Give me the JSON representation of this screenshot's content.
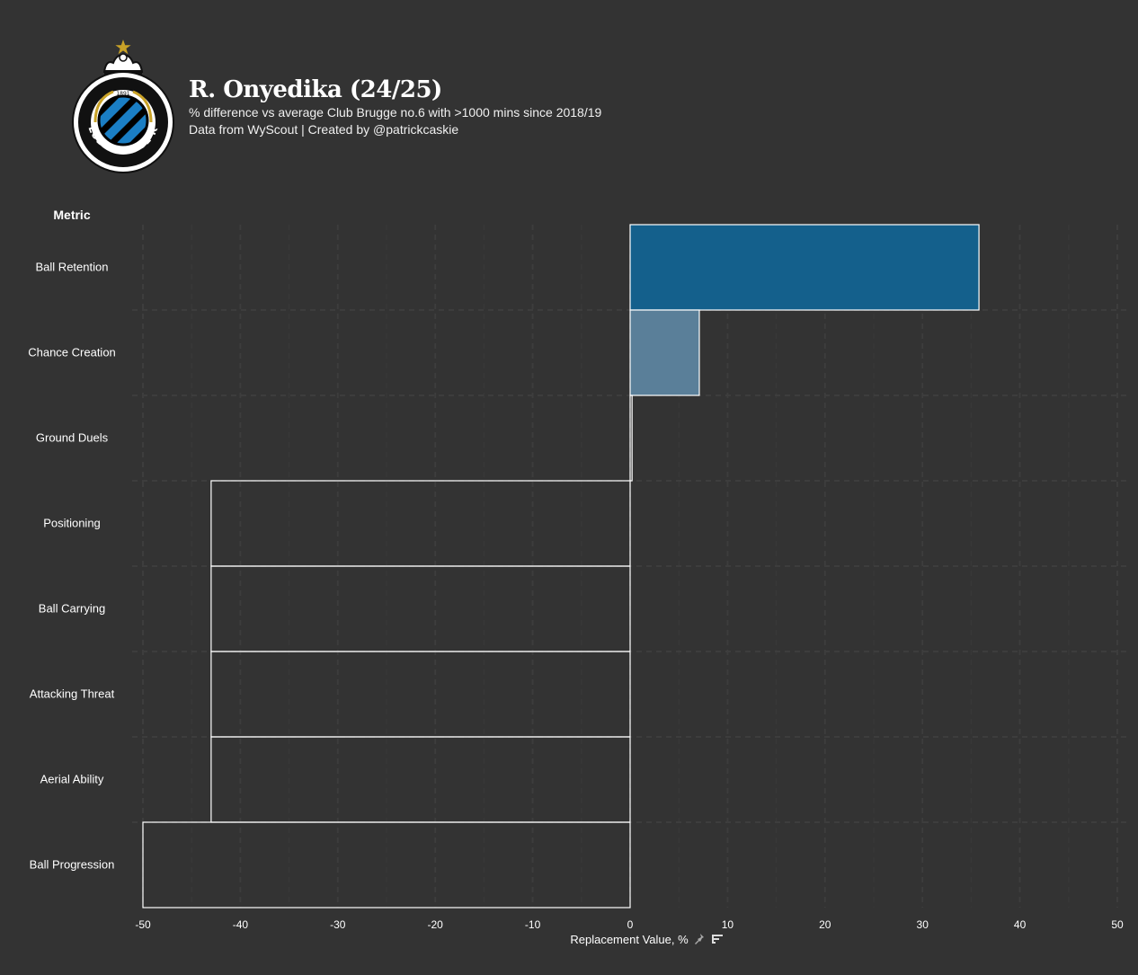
{
  "header": {
    "title": "R. Onyedika (24/25)",
    "subtitle_line1": "% difference vs average Club Brugge no.6 with >1000 mins since 2018/19",
    "subtitle_line2": "Data from WyScout | Created by @patrickcaskie"
  },
  "logo": {
    "year": "1891",
    "text": "CLUB BRUGGE KV"
  },
  "colors": {
    "background": "#333333",
    "bar_strong": "#14608c",
    "bar_light": "#5a7f99",
    "bar_outline": "#ffffff",
    "gold": "#c9a227"
  },
  "chart_data": {
    "type": "bar",
    "orientation": "horizontal",
    "title": "R. Onyedika (24/25)",
    "ylabel": "Metric",
    "xlabel": "Replacement Value, %",
    "xlim": [
      -50,
      50
    ],
    "xticks": [
      -50,
      -40,
      -30,
      -20,
      -10,
      0,
      10,
      20,
      30,
      40,
      50
    ],
    "categories": [
      "Ball Retention",
      "Chance Creation",
      "Ground Duels",
      "Positioning",
      "Ball Carrying",
      "Attacking Threat",
      "Aerial Ability",
      "Ball Progression"
    ],
    "values": [
      35.8,
      7.1,
      0.2,
      -43,
      -43,
      -43,
      -43,
      -50
    ],
    "grid": true
  }
}
